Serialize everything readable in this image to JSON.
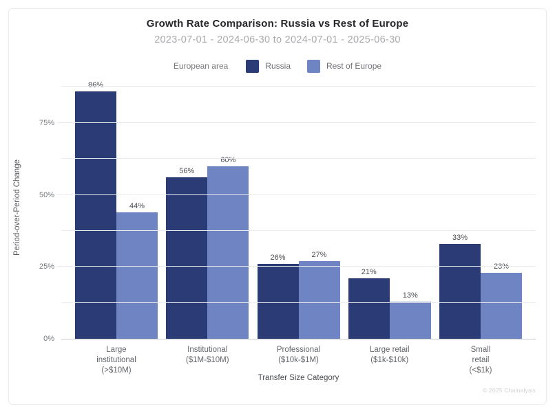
{
  "header": {
    "title": "Growth Rate Comparison: Russia vs Rest of Europe",
    "subtitle": "2023-07-01 - 2024-06-30 to 2024-07-01 - 2025-06-30"
  },
  "legend": {
    "label": "European area"
  },
  "chart_data": {
    "type": "bar",
    "title": "Growth Rate Comparison: Russia vs Rest of Europe",
    "subtitle": "2023-07-01 - 2024-06-30 to 2024-07-01 - 2025-06-30",
    "categories": [
      "Large\ninstitutional\n(>$10M)",
      "Institutional\n($1M-$10M)",
      "Professional\n($10k-$1M)",
      "Large retail\n($1k-$10k)",
      "Small\nretail\n(<$1k)"
    ],
    "series": [
      {
        "name": "Russia",
        "color": "#2a3b76",
        "values": [
          86,
          56,
          26,
          21,
          33
        ]
      },
      {
        "name": "Rest of Europe",
        "color": "#6e84c3",
        "values": [
          44,
          60,
          27,
          13,
          23
        ]
      }
    ],
    "value_suffix": "%",
    "xlabel": "Transfer Size Category",
    "ylabel": "Period-over-Period Change",
    "ylim": [
      0,
      90
    ],
    "grid_step": 12.5,
    "yticks": [
      0,
      25,
      50,
      75
    ],
    "ytick_suffix": "%",
    "legend_position": "top",
    "grid": "horizontal"
  },
  "footer": {
    "copyright": "© 2025 Chainalysis"
  }
}
